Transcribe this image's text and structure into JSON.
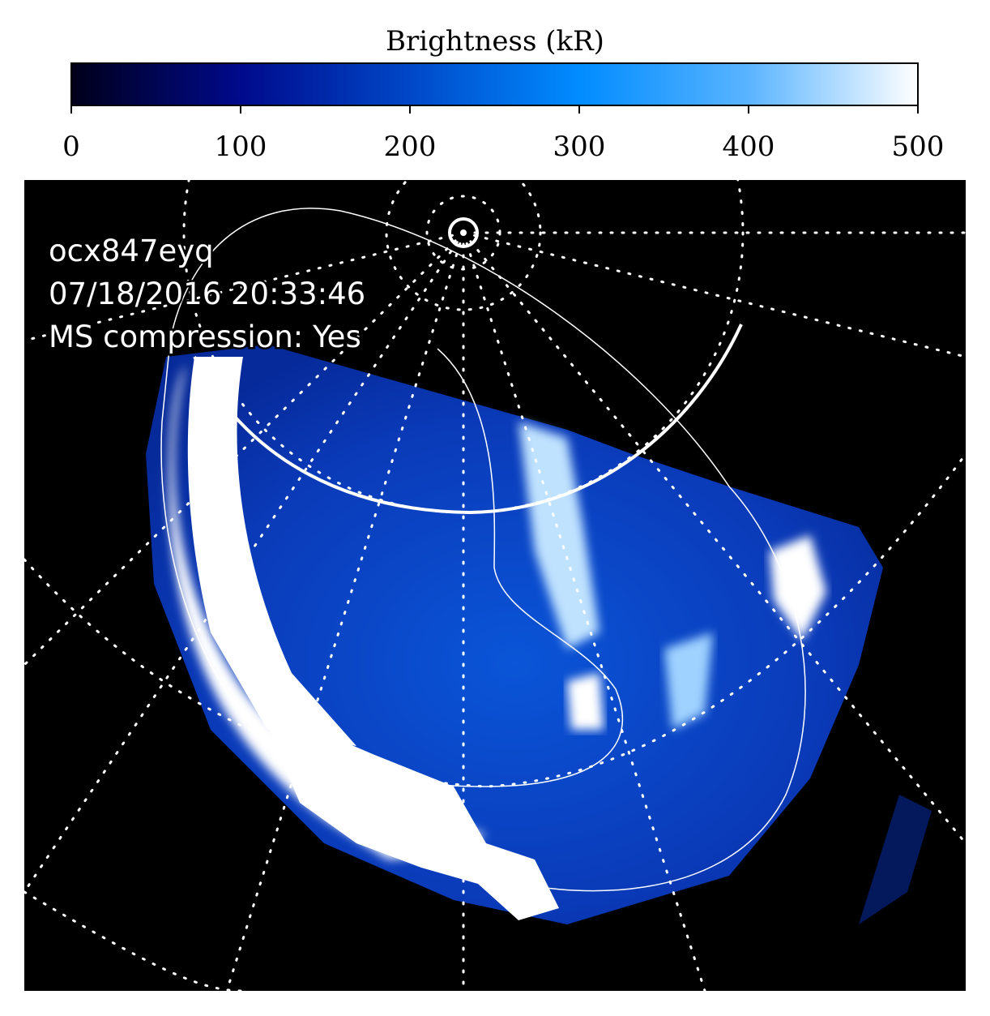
{
  "chart_data": {
    "type": "image",
    "colorbar": {
      "title": "Brightness (kR)",
      "lim": [
        0,
        500
      ],
      "ticks": [
        0,
        100,
        200,
        300,
        400,
        500
      ],
      "colors": [
        "#00001a",
        "#000a8c",
        "#0048c8",
        "#008cff",
        "#5ab4ff",
        "#ffffff"
      ]
    },
    "annotations": [
      "ocx847eyq",
      "07/18/2016 20:33:46",
      "MS compression: Yes"
    ]
  }
}
